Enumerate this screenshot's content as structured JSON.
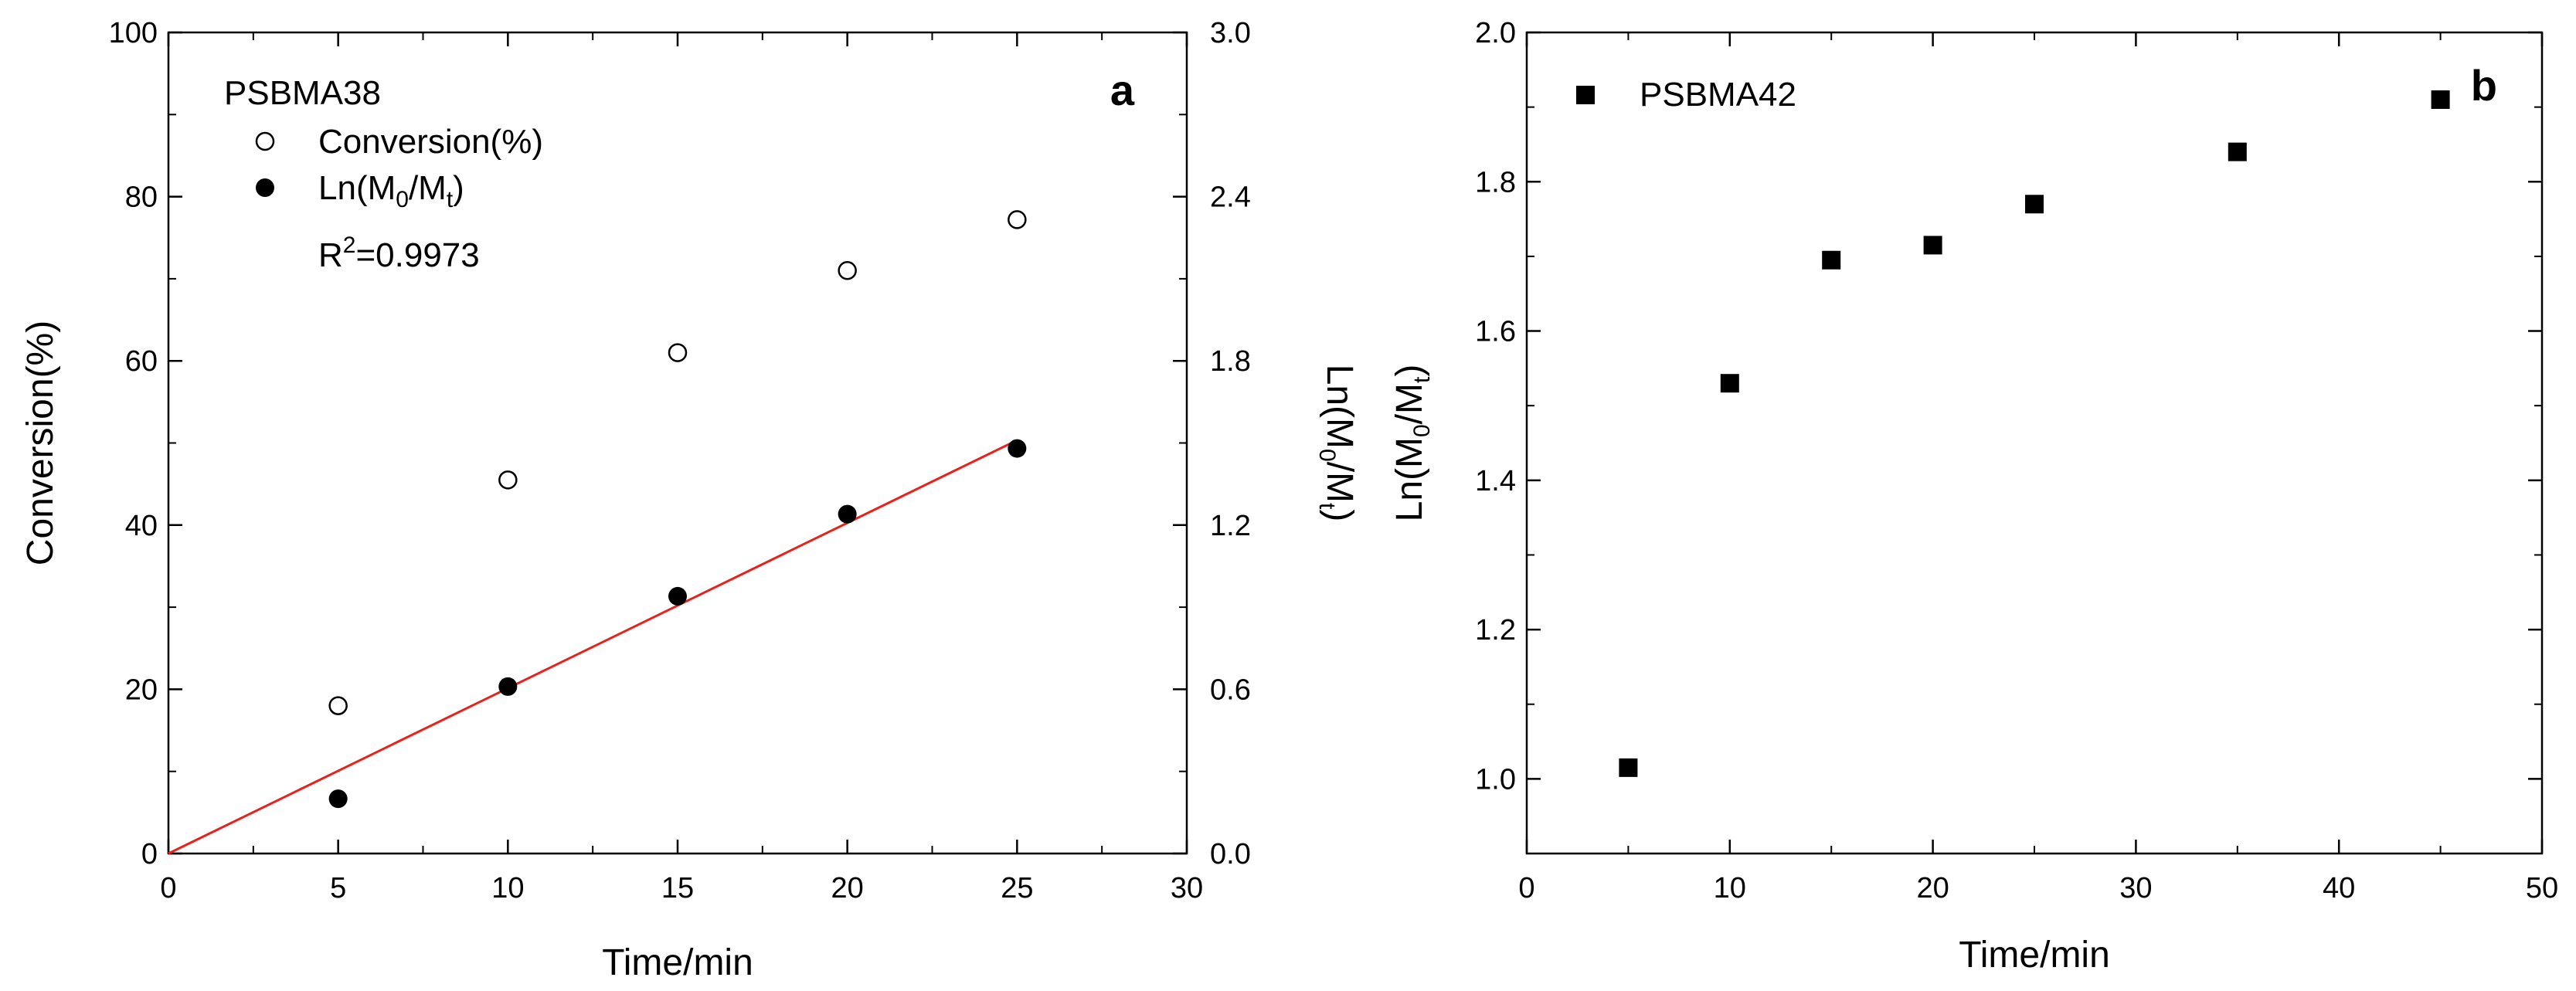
{
  "chart_data": [
    {
      "panel": "a",
      "type": "scatter",
      "panel_label": "a",
      "legend_title": "PSBMA38",
      "xlabel": "Time/min",
      "ylabel": "Conversion(%)",
      "ylabel_right": {
        "text": "Ln(M",
        "sub0": "0",
        "mid": "/M",
        "subt": "t",
        "end": ")"
      },
      "xlim": [
        0,
        30
      ],
      "ylim": [
        0,
        100
      ],
      "ylim_right": [
        0,
        3.0
      ],
      "xticks": [
        "0",
        "5",
        "10",
        "15",
        "20",
        "25",
        "30"
      ],
      "yticks": [
        "0",
        "20",
        "40",
        "60",
        "80",
        "100"
      ],
      "yticks_right": [
        "0.0",
        "0.6",
        "1.2",
        "1.8",
        "2.4",
        "3.0"
      ],
      "series": [
        {
          "name": "Conversion(%)",
          "marker": "open-circle",
          "axis": "left",
          "x": [
            5,
            10,
            15,
            20,
            25
          ],
          "y": [
            18,
            45.5,
            61,
            71,
            77.2
          ]
        },
        {
          "name": "Ln(M0/Mt)",
          "legend": {
            "text": "Ln(M",
            "sub0": "0",
            "mid": "/M",
            "subt": "t",
            "end": ")"
          },
          "marker": "filled-circle",
          "axis": "right",
          "x": [
            5,
            10,
            15,
            20,
            25
          ],
          "y": [
            0.2,
            0.61,
            0.94,
            1.24,
            1.48
          ]
        }
      ],
      "fit_line": {
        "axis": "right",
        "color": "#e8221b",
        "x": [
          0,
          25
        ],
        "y": [
          0,
          1.51
        ]
      },
      "annotation": {
        "text": "R",
        "sup": "2",
        "end": "=0.9973"
      }
    },
    {
      "panel": "b",
      "type": "scatter",
      "panel_label": "b",
      "xlabel": "Time/min",
      "ylabel": {
        "text": "Ln(M",
        "sub0": "0",
        "mid": "/M",
        "subt": "t",
        "end": ")"
      },
      "xlim": [
        0,
        50
      ],
      "ylim": [
        0.9,
        2.0
      ],
      "xticks": [
        "0",
        "10",
        "20",
        "30",
        "40",
        "50"
      ],
      "yticks": [
        "1.0",
        "1.2",
        "1.4",
        "1.6",
        "1.8",
        "2.0"
      ],
      "series": [
        {
          "name": "PSBMA42",
          "marker": "filled-square",
          "x": [
            5,
            10,
            15,
            20,
            25,
            35,
            45
          ],
          "y": [
            1.015,
            1.53,
            1.695,
            1.715,
            1.77,
            1.84,
            1.91
          ]
        }
      ]
    }
  ]
}
